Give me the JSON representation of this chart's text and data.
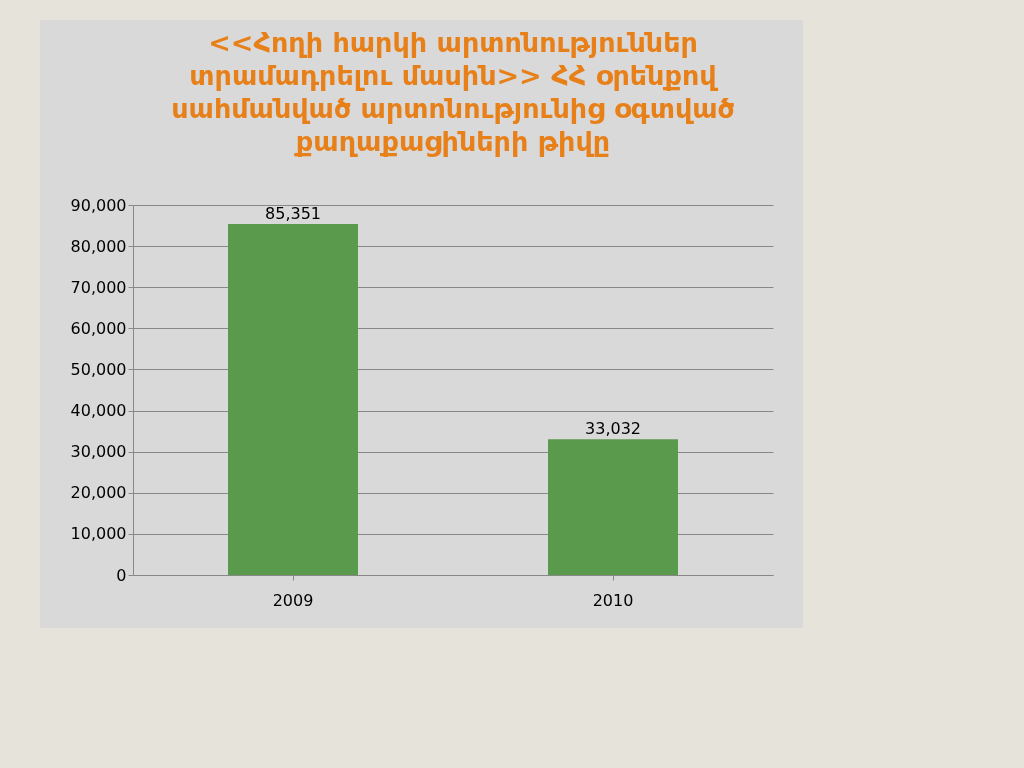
{
  "chart_data": {
    "type": "bar",
    "title": "<<Հողի հարկի արտոնություններ տրամադրելու մասին>> ՀՀ օրենքով սահմանված արտոնությունից օգտված քաղաքացիների թիվը",
    "categories": [
      "2009",
      "2010"
    ],
    "values": [
      85351,
      33032
    ],
    "color": "#5a9a4c",
    "ylim": [
      0,
      90000
    ],
    "yticks": [
      {
        "value": 0,
        "label": "0"
      },
      {
        "value": 10000,
        "label": "10,000"
      },
      {
        "value": 20000,
        "label": "20,000"
      },
      {
        "value": 30000,
        "label": "30,000"
      },
      {
        "value": 40000,
        "label": "40,000"
      },
      {
        "value": 50000,
        "label": "50,000"
      },
      {
        "value": 60000,
        "label": "60,000"
      },
      {
        "value": 70000,
        "label": "70,000"
      },
      {
        "value": 80000,
        "label": "80,000"
      },
      {
        "value": 90000,
        "label": "90,000"
      }
    ],
    "value_labels": [
      "85,351",
      "33,032"
    ],
    "grid": "y"
  }
}
